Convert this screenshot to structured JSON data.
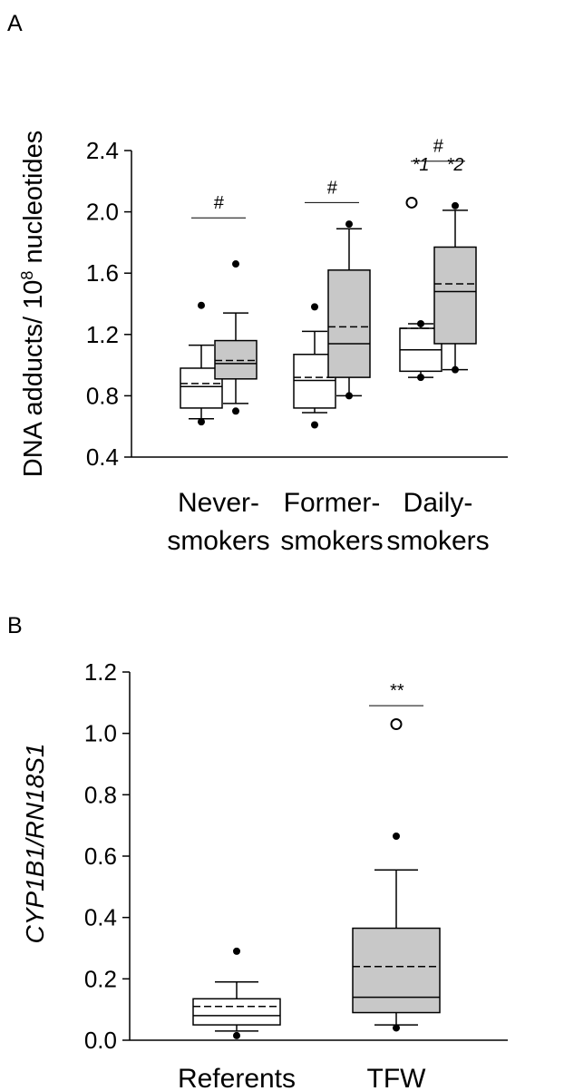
{
  "chart_data": [
    {
      "panel": "A",
      "type": "box",
      "ylabel_main": "DNA adducts/ 10",
      "ylabel_sup": "8",
      "ylabel_tail": " nucleotides",
      "ylim": [
        0.4,
        2.4
      ],
      "yticks": [
        "0.4",
        "0.8",
        "1.2",
        "1.6",
        "2.0",
        "2.4"
      ],
      "categories": [
        {
          "line1": "Never-",
          "line2": "smokers"
        },
        {
          "line1": "Former-",
          "line2": "smokers"
        },
        {
          "line1": "Daily-",
          "line2": "smokers"
        }
      ],
      "boxes": [
        {
          "group": 0,
          "fill": "#ffffff",
          "q1": 0.72,
          "median": 0.86,
          "mean": 0.88,
          "q3": 0.98,
          "whisker_low": 0.65,
          "whisker_high": 1.13,
          "outliers": [
            0.63,
            1.39
          ]
        },
        {
          "group": 0,
          "fill": "#c8c8c8",
          "q1": 0.91,
          "median": 1.01,
          "mean": 1.03,
          "q3": 1.16,
          "whisker_low": 0.75,
          "whisker_high": 1.34,
          "outliers": [
            0.7,
            1.66
          ]
        },
        {
          "group": 1,
          "fill": "#ffffff",
          "q1": 0.72,
          "median": 0.9,
          "mean": 0.92,
          "q3": 1.07,
          "whisker_low": 0.69,
          "whisker_high": 1.22,
          "outliers": [
            0.61,
            1.38
          ]
        },
        {
          "group": 1,
          "fill": "#c8c8c8",
          "q1": 0.92,
          "median": 1.14,
          "mean": 1.25,
          "q3": 1.62,
          "whisker_low": 0.8,
          "whisker_high": 1.89,
          "outliers": [
            0.8,
            1.92
          ]
        },
        {
          "group": 2,
          "fill": "#ffffff",
          "q1": 0.96,
          "median": 1.1,
          "mean": 1.24,
          "q3": 1.24,
          "whisker_low": 0.92,
          "whisker_high": 1.27,
          "outliers": [
            0.92,
            1.27
          ],
          "open_outliers": [
            2.06
          ]
        },
        {
          "group": 2,
          "fill": "#c8c8c8",
          "q1": 1.14,
          "median": 1.48,
          "mean": 1.53,
          "q3": 1.77,
          "whisker_low": 0.97,
          "whisker_high": 2.01,
          "outliers": [
            0.97,
            2.04
          ]
        }
      ],
      "annotations": [
        {
          "text": "#",
          "group": 0,
          "y": 2.02
        },
        {
          "text": "#",
          "group": 1,
          "y": 2.12
        },
        {
          "text": "#",
          "group": 2,
          "y": 2.39
        },
        {
          "text": "*1",
          "group": 2,
          "box": 0,
          "y": 2.27
        },
        {
          "text": "*2",
          "group": 2,
          "box": 1,
          "y": 2.27
        }
      ]
    },
    {
      "panel": "B",
      "type": "box",
      "ylabel": "CYP1B1/RN18S1",
      "ylim": [
        0.0,
        1.2
      ],
      "yticks": [
        "0.0",
        "0.2",
        "0.4",
        "0.6",
        "0.8",
        "1.0",
        "1.2"
      ],
      "categories": [
        "Referents",
        "TFW"
      ],
      "boxes": [
        {
          "group": 0,
          "fill": "#ffffff",
          "q1": 0.05,
          "median": 0.08,
          "mean": 0.11,
          "q3": 0.135,
          "whisker_low": 0.03,
          "whisker_high": 0.19,
          "outliers": [
            0.015,
            0.29
          ]
        },
        {
          "group": 1,
          "fill": "#c8c8c8",
          "q1": 0.09,
          "median": 0.14,
          "mean": 0.24,
          "q3": 0.365,
          "whisker_low": 0.05,
          "whisker_high": 0.555,
          "outliers": [
            0.04,
            0.665
          ],
          "open_outliers": [
            1.03
          ]
        }
      ],
      "annotations": [
        {
          "text": "**",
          "group": 1,
          "y": 1.12
        }
      ]
    }
  ]
}
